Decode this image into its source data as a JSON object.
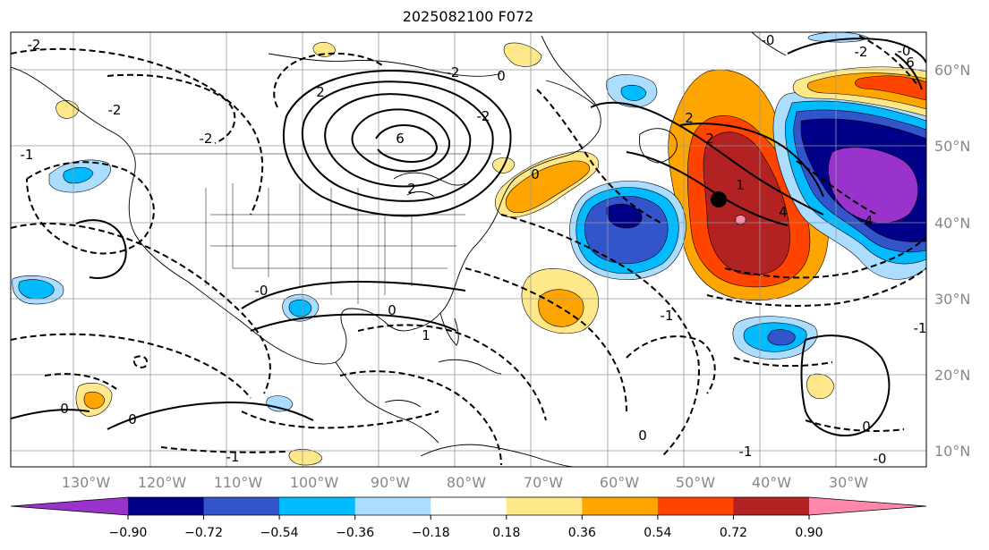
{
  "title": "2025082100 F072",
  "map": {
    "lat_labels": [
      "10°N",
      "20°N",
      "30°N",
      "40°N",
      "50°N",
      "60°N"
    ],
    "lon_labels": [
      "130°W",
      "120°W",
      "110°W",
      "100°W",
      "90°W",
      "80°W",
      "70°W",
      "60°W",
      "50°W",
      "40°W",
      "30°W"
    ],
    "contour_labels": [
      "-2",
      "-2",
      "2",
      "-2",
      "6",
      "2",
      "-0",
      "0",
      "0",
      "-1",
      "1",
      "0",
      "-1",
      "0",
      "0",
      "-2",
      "2",
      "-0",
      "2",
      "6",
      "-2",
      "4",
      "1",
      "-4",
      "-1",
      "-1",
      "0",
      "0",
      "-0",
      "-1",
      "-2",
      "-2",
      "-0"
    ]
  },
  "colorbar": {
    "tick_labels": [
      "−0.90",
      "−0.72",
      "−0.54",
      "−0.36",
      "−0.18",
      "0.18",
      "0.36",
      "0.54",
      "0.72",
      "0.90"
    ],
    "colors": [
      "#9933cc",
      "#000088",
      "#3355cc",
      "#00bbff",
      "#aaddff",
      "#ffffff",
      "#ffe88a",
      "#ffa500",
      "#ff4400",
      "#b22222",
      "#ff88aa"
    ]
  },
  "fill_colors": {
    "neg_light": "#aaddff",
    "neg_mid": "#00bbff",
    "neg_dark": "#3355cc",
    "neg_navy": "#000088",
    "neg_purple": "#9933cc",
    "pos_light": "#ffe88a",
    "pos_mid": "#ffa500",
    "pos_red": "#ff4400",
    "pos_dark": "#b22222",
    "pos_pink": "#ff88aa"
  }
}
